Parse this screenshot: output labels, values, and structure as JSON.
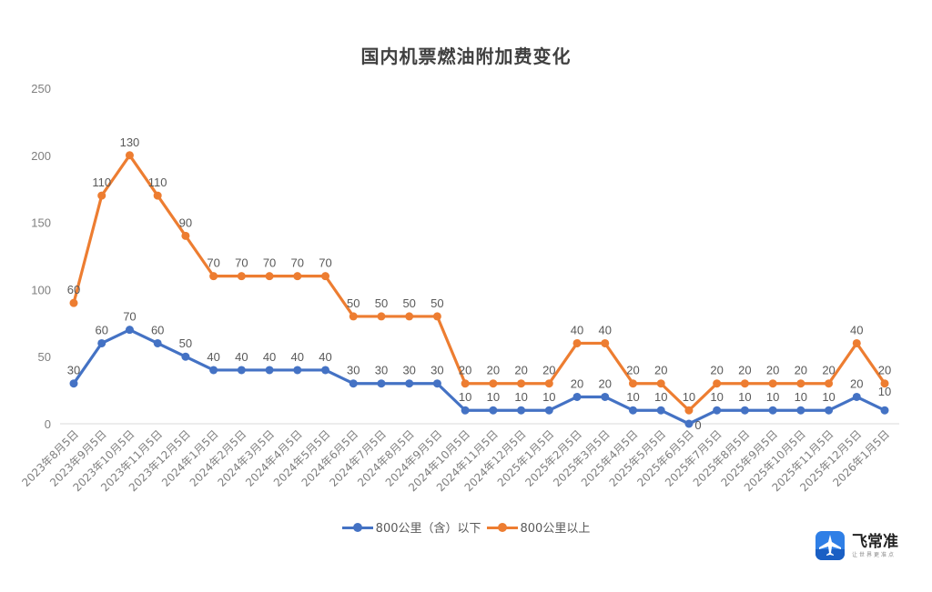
{
  "chart_data": {
    "type": "line",
    "stacked": true,
    "title": "国内机票燃油附加费变化",
    "xlabel": "",
    "ylabel": "",
    "ylim": [
      0,
      250
    ],
    "yticks": [
      0,
      50,
      100,
      150,
      200,
      250
    ],
    "grid": false,
    "legend_position": "bottom",
    "categories": [
      "2023年8月5日",
      "2023年9月5日",
      "2023年10月5日",
      "2023年11月5日",
      "2023年12月5日",
      "2024年1月5日",
      "2024年2月5日",
      "2024年3月5日",
      "2024年4月5日",
      "2024年5月5日",
      "2024年6月5日",
      "2024年7月5日",
      "2024年8月5日",
      "2024年9月5日",
      "2024年10月5日",
      "2024年11月5日",
      "2024年12月5日",
      "2025年1月5日",
      "2025年2月5日",
      "2025年3月5日",
      "2025年4月5日",
      "2025年5月5日",
      "2025年6月5日",
      "2025年7月5日",
      "2025年8月5日",
      "2025年9月5日",
      "2025年10月5日",
      "2025年11月5日",
      "2025年12月5日",
      "2026年1月5日"
    ],
    "series": [
      {
        "name": "800公里（含）以下",
        "color": "#4472C4",
        "values": [
          30,
          60,
          70,
          60,
          50,
          40,
          40,
          40,
          40,
          40,
          30,
          30,
          30,
          30,
          10,
          10,
          10,
          10,
          20,
          20,
          10,
          10,
          0,
          10,
          10,
          10,
          10,
          10,
          20,
          10
        ]
      },
      {
        "name": "800公里以上",
        "color": "#ED7D31",
        "values": [
          60,
          110,
          130,
          110,
          90,
          70,
          70,
          70,
          70,
          70,
          50,
          50,
          50,
          50,
          20,
          20,
          20,
          20,
          40,
          40,
          20,
          20,
          10,
          20,
          20,
          20,
          20,
          20,
          40,
          20
        ]
      }
    ]
  },
  "legend": {
    "items": [
      {
        "label": "800公里（含）以下",
        "color": "#4472C4"
      },
      {
        "label": "800公里以上",
        "color": "#ED7D31"
      }
    ]
  },
  "logo": {
    "name": "飞常准",
    "subtitle": "让世界更准点"
  }
}
